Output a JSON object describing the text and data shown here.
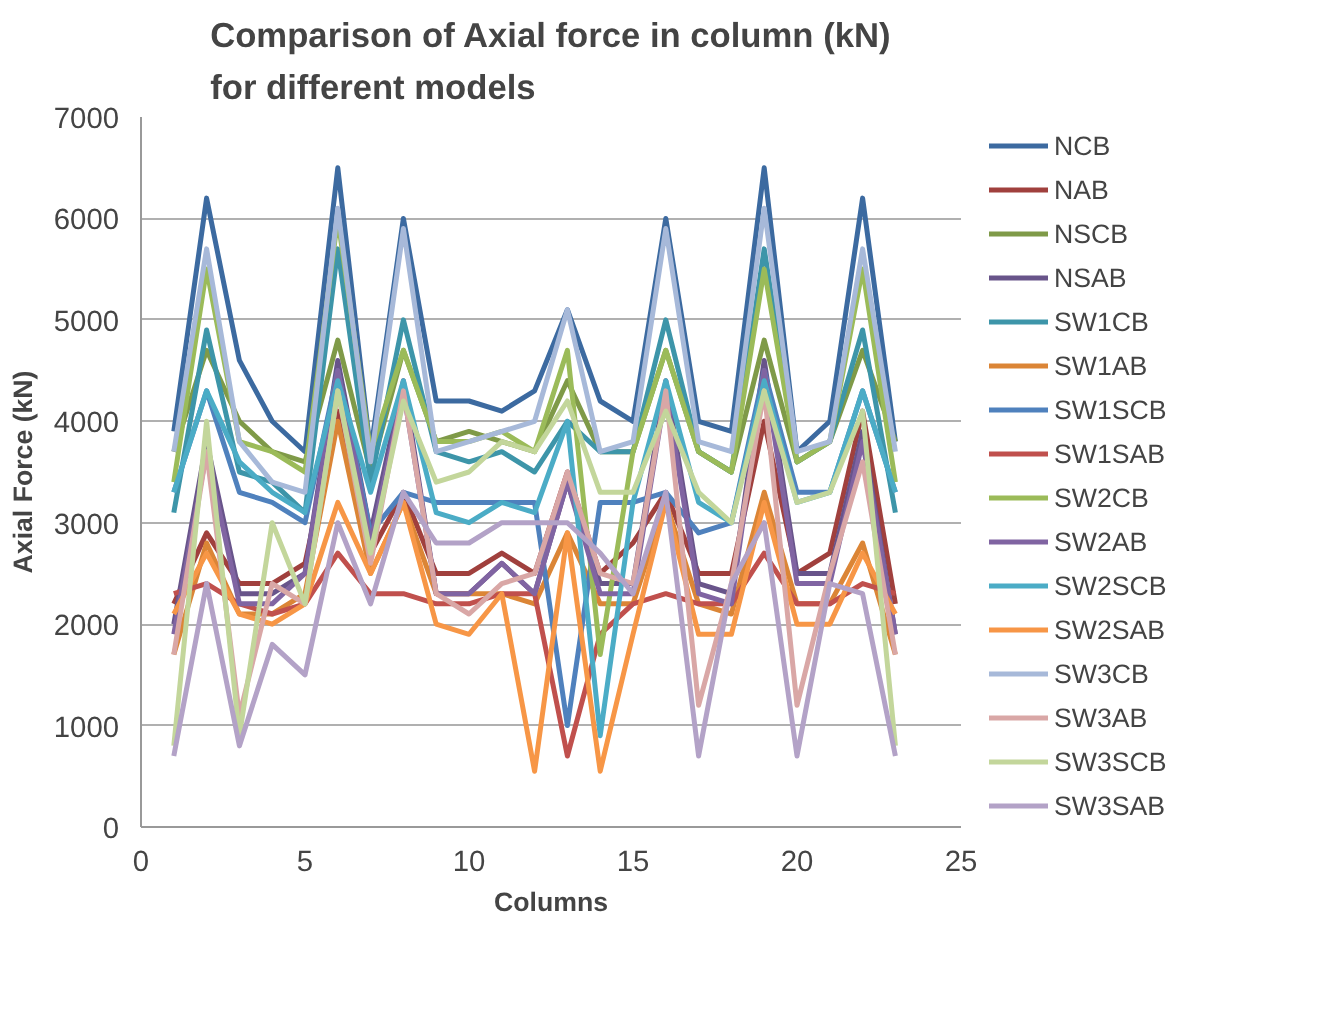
{
  "chart_data": {
    "type": "line",
    "title": "Comparison of Axial force in column (kN) for different models",
    "xlabel": "Columns",
    "ylabel": "Axial Force (kN)",
    "x": [
      1,
      2,
      3,
      4,
      5,
      6,
      7,
      8,
      9,
      10,
      11,
      12,
      13,
      14,
      15,
      16,
      17,
      18,
      19,
      20,
      21,
      22,
      23
    ],
    "xlim": [
      0,
      25
    ],
    "xticks": [
      0,
      5,
      10,
      15,
      20,
      25
    ],
    "ylim": [
      0,
      7000
    ],
    "yticks": [
      0,
      1000,
      2000,
      3000,
      4000,
      5000,
      6000,
      7000
    ],
    "grid": "y",
    "legend": "right",
    "marker": "none",
    "line_style": "solid",
    "series": [
      {
        "name": "NCB",
        "color": "#3c6aa0",
        "values": [
          3900,
          6200,
          4600,
          4000,
          3700,
          6500,
          3700,
          6000,
          4200,
          4200,
          4100,
          4300,
          5100,
          4200,
          4000,
          6000,
          4000,
          3900,
          6500,
          3700,
          4000,
          6200,
          3800
        ]
      },
      {
        "name": "NAB",
        "color": "#a0403d",
        "values": [
          2200,
          2900,
          2400,
          2400,
          2600,
          4100,
          2700,
          3300,
          2500,
          2500,
          2700,
          2500,
          3500,
          2500,
          2800,
          3300,
          2500,
          2500,
          4000,
          2500,
          2700,
          4100,
          2200
        ]
      },
      {
        "name": "NSCB",
        "color": "#7f9a48",
        "values": [
          3700,
          4700,
          4000,
          3700,
          3600,
          4800,
          3500,
          4700,
          3800,
          3900,
          3800,
          3700,
          4400,
          3700,
          3700,
          4700,
          3700,
          3500,
          4800,
          3600,
          3800,
          4700,
          3800
        ]
      },
      {
        "name": "NSAB",
        "color": "#68548a",
        "values": [
          2000,
          3800,
          2300,
          2300,
          2500,
          4600,
          2900,
          4400,
          2300,
          2300,
          2600,
          2300,
          3400,
          2400,
          2400,
          4400,
          2400,
          2300,
          4600,
          2500,
          2500,
          3900,
          1900
        ]
      },
      {
        "name": "SW1CB",
        "color": "#3d95a9",
        "values": [
          3100,
          4900,
          3500,
          3400,
          3100,
          5700,
          3400,
          5000,
          3700,
          3600,
          3700,
          3500,
          4000,
          3700,
          3700,
          5000,
          3700,
          3500,
          5700,
          3600,
          3800,
          4900,
          3100
        ]
      },
      {
        "name": "SW1AB",
        "color": "#db8536",
        "values": [
          1700,
          2800,
          2100,
          2100,
          2300,
          4000,
          2500,
          3200,
          2300,
          2300,
          2300,
          2200,
          2900,
          2200,
          2200,
          3200,
          2200,
          2100,
          3300,
          2200,
          2200,
          2800,
          1700
        ]
      },
      {
        "name": "SW1SCB",
        "color": "#4f81bd",
        "values": [
          3300,
          4300,
          3300,
          3200,
          3000,
          4500,
          2900,
          3300,
          3200,
          3200,
          3200,
          3200,
          1000,
          3200,
          3200,
          3300,
          2900,
          3000,
          4500,
          3300,
          3300,
          4300,
          3300
        ]
      },
      {
        "name": "SW1SAB",
        "color": "#c0504d",
        "values": [
          2300,
          2400,
          2200,
          2100,
          2200,
          2700,
          2300,
          2300,
          2200,
          2200,
          2300,
          2300,
          700,
          1900,
          2200,
          2300,
          2200,
          2200,
          2700,
          2200,
          2200,
          2400,
          2300
        ]
      },
      {
        "name": "SW2CB",
        "color": "#9bbb59",
        "values": [
          3400,
          5500,
          3800,
          3700,
          3500,
          6000,
          3700,
          4700,
          3800,
          3800,
          3900,
          3700,
          4700,
          1700,
          3700,
          4700,
          3700,
          3500,
          5500,
          3600,
          3800,
          5500,
          3400
        ]
      },
      {
        "name": "SW2AB",
        "color": "#8064a2",
        "values": [
          1900,
          3700,
          2200,
          2200,
          2500,
          4500,
          2800,
          4300,
          2300,
          2300,
          2600,
          2300,
          3400,
          2300,
          2300,
          4300,
          2300,
          2200,
          4500,
          2400,
          2400,
          3800,
          1900
        ]
      },
      {
        "name": "SW2SCB",
        "color": "#4bacc6",
        "values": [
          3300,
          4300,
          3600,
          3300,
          3100,
          4400,
          3300,
          4400,
          3100,
          3000,
          3200,
          3100,
          4000,
          900,
          3200,
          4400,
          3200,
          3000,
          4400,
          3200,
          3300,
          4300,
          3300
        ]
      },
      {
        "name": "SW2SAB",
        "color": "#f79646",
        "values": [
          2100,
          2700,
          2100,
          2000,
          2200,
          3200,
          2500,
          3200,
          2000,
          1900,
          2300,
          550,
          2900,
          550,
          1900,
          3200,
          1900,
          1900,
          3200,
          2000,
          2000,
          2700,
          2100
        ]
      },
      {
        "name": "SW3CB",
        "color": "#a7b9d9",
        "values": [
          3700,
          5700,
          3800,
          3400,
          3300,
          6100,
          3600,
          5900,
          3700,
          3800,
          3900,
          4000,
          5100,
          3700,
          3800,
          5900,
          3800,
          3700,
          6100,
          3700,
          3800,
          5700,
          3700
        ]
      },
      {
        "name": "SW3AB",
        "color": "#d9a7a6",
        "values": [
          1700,
          3700,
          1100,
          2400,
          2200,
          4300,
          2600,
          4300,
          2300,
          2100,
          2400,
          2500,
          3500,
          2500,
          2400,
          4300,
          1200,
          2400,
          4300,
          1200,
          2500,
          3600,
          1700
        ]
      },
      {
        "name": "SW3SCB",
        "color": "#c3d69b",
        "values": [
          800,
          4000,
          900,
          3000,
          2200,
          4300,
          2700,
          4200,
          3400,
          3500,
          3800,
          3700,
          4200,
          3300,
          3300,
          4100,
          3300,
          3000,
          4300,
          3200,
          3300,
          4100,
          800
        ]
      },
      {
        "name": "SW3SAB",
        "color": "#b3a2c7",
        "values": [
          700,
          2400,
          800,
          1800,
          1500,
          3000,
          2200,
          3300,
          2800,
          2800,
          3000,
          3000,
          3000,
          2700,
          2300,
          3300,
          700,
          2400,
          3000,
          700,
          2400,
          2300,
          700
        ]
      }
    ]
  }
}
